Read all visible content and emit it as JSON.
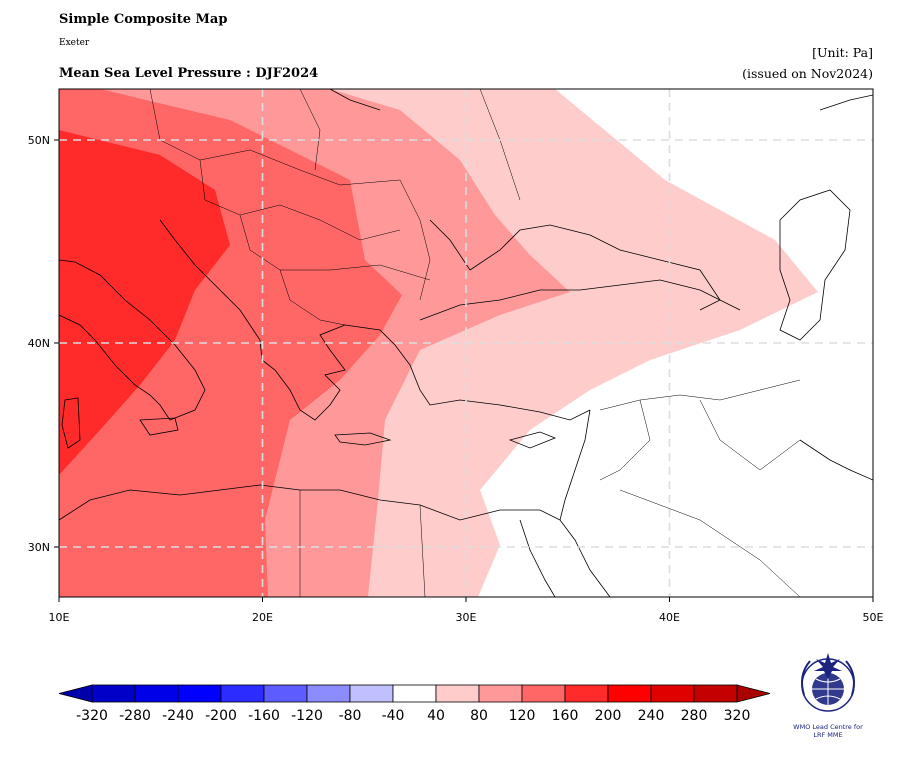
{
  "header": {
    "title": "Simple Composite Map",
    "subtitle": "Exeter",
    "variable": "Mean Sea Level Pressure : DJF2024",
    "unit": "[Unit: Pa]",
    "issued": "(issued on Nov2024)"
  },
  "map": {
    "lon_range": [
      10,
      50
    ],
    "lat_range": [
      27.5,
      52.5
    ],
    "x_ticks": [
      "10E",
      "20E",
      "30E",
      "40E",
      "50E"
    ],
    "y_ticks": [
      "50N",
      "40N",
      "30N"
    ],
    "gridlines": "dashed"
  },
  "colorbar": {
    "levels": [
      "-320",
      "-280",
      "-240",
      "-200",
      "-160",
      "-120",
      "-80",
      "-40",
      "40",
      "80",
      "120",
      "160",
      "200",
      "240",
      "280",
      "320"
    ],
    "colors": [
      "#0000c8",
      "#0000e8",
      "#0000ff",
      "#2c2cff",
      "#5c5cff",
      "#8c8cff",
      "#c0c0ff",
      "#ffffff",
      "#ffcccc",
      "#ff9999",
      "#ff6666",
      "#ff2a2a",
      "#ff0000",
      "#e00000",
      "#c40000"
    ],
    "under_color": "#0000aa",
    "over_color": "#aa0000"
  },
  "logo": {
    "line1": "WMO Lead Centre for",
    "line2": "LRF MME"
  },
  "colors": {
    "level_40_80": "#ffcccc",
    "level_80_120": "#ff9999",
    "level_120_160": "#ff6666",
    "level_160_200": "#ff2a2a"
  }
}
